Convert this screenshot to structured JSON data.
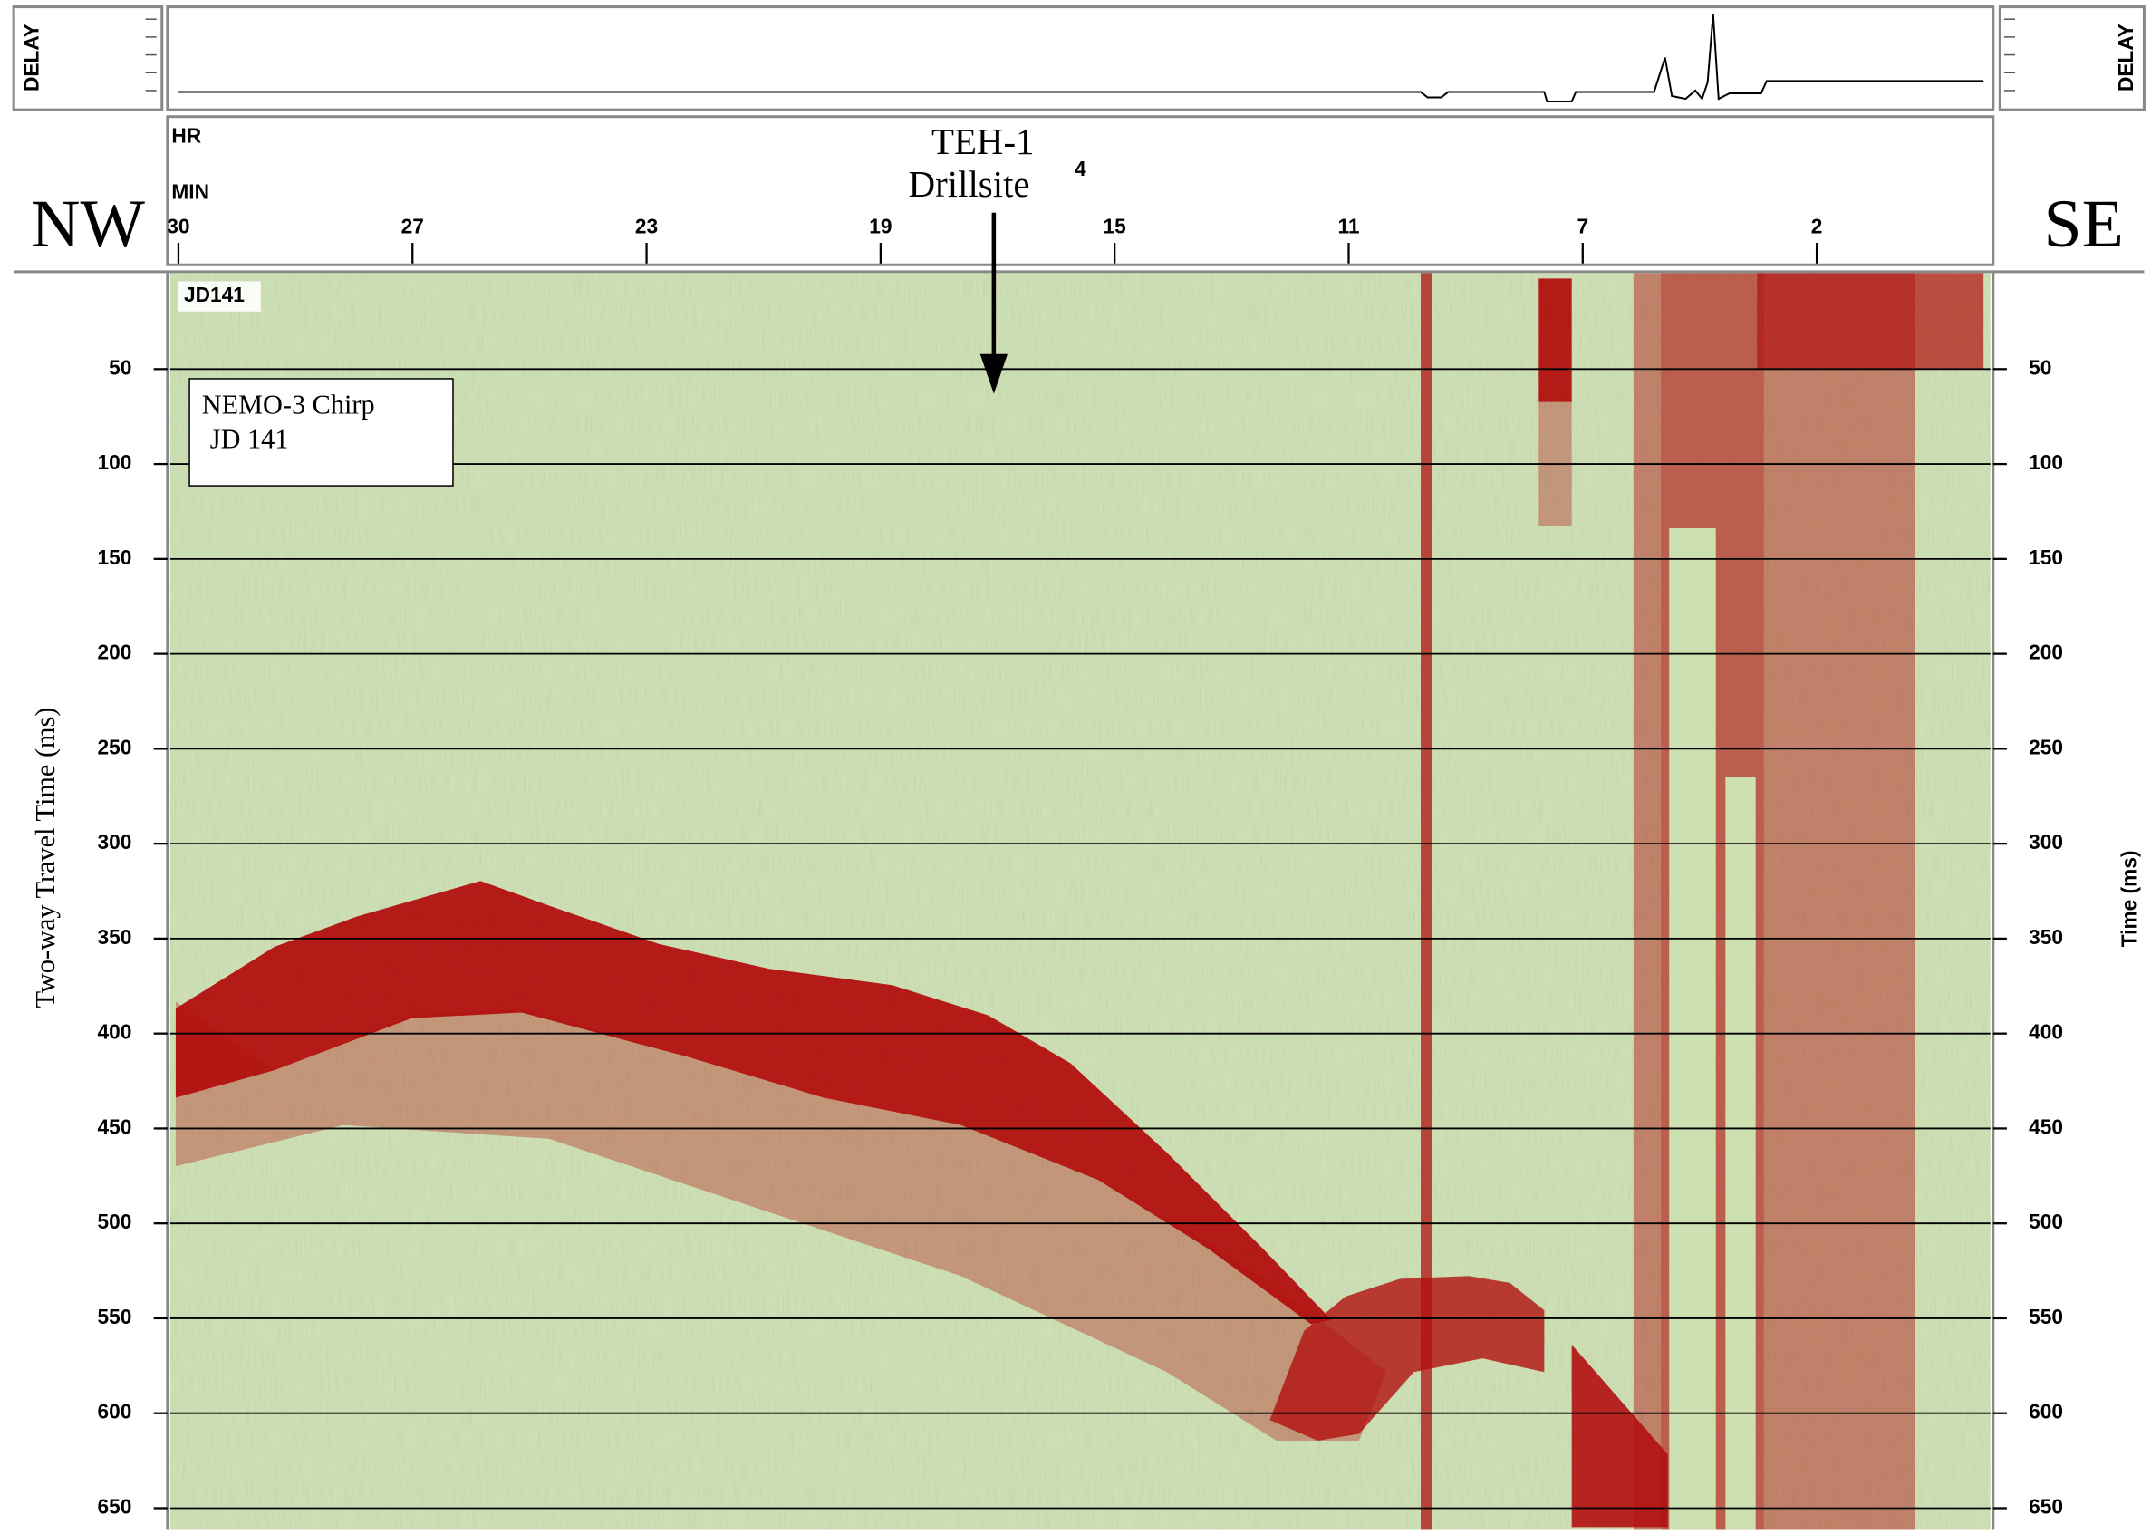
{
  "chart_data": {
    "type": "seismic-profile",
    "left_direction": "NW",
    "right_direction": "SE",
    "delay_label_left": "DELAY",
    "delay_label_right": "DELAY",
    "hour_label": "HR",
    "hour_value": 4,
    "minute_label": "MIN",
    "categories": [
      "30",
      "27",
      "23",
      "19",
      "15",
      "11",
      "7",
      "2"
    ],
    "site_label": [
      "TEH-1",
      "Drillsite"
    ],
    "day_tag": "JD141",
    "legend": [
      "NEMO-3 Chirp",
      "JD 141"
    ],
    "ylabel": "Two-way Travel Time (ms)",
    "y2label": "Time (ms)",
    "ylim": [
      0,
      660
    ],
    "yticks": [
      50,
      100,
      150,
      200,
      250,
      300,
      350,
      400,
      450,
      500,
      550,
      600,
      650
    ],
    "grid": true,
    "background_color": "#cde0b2",
    "reflector_color": "#b2100f"
  }
}
